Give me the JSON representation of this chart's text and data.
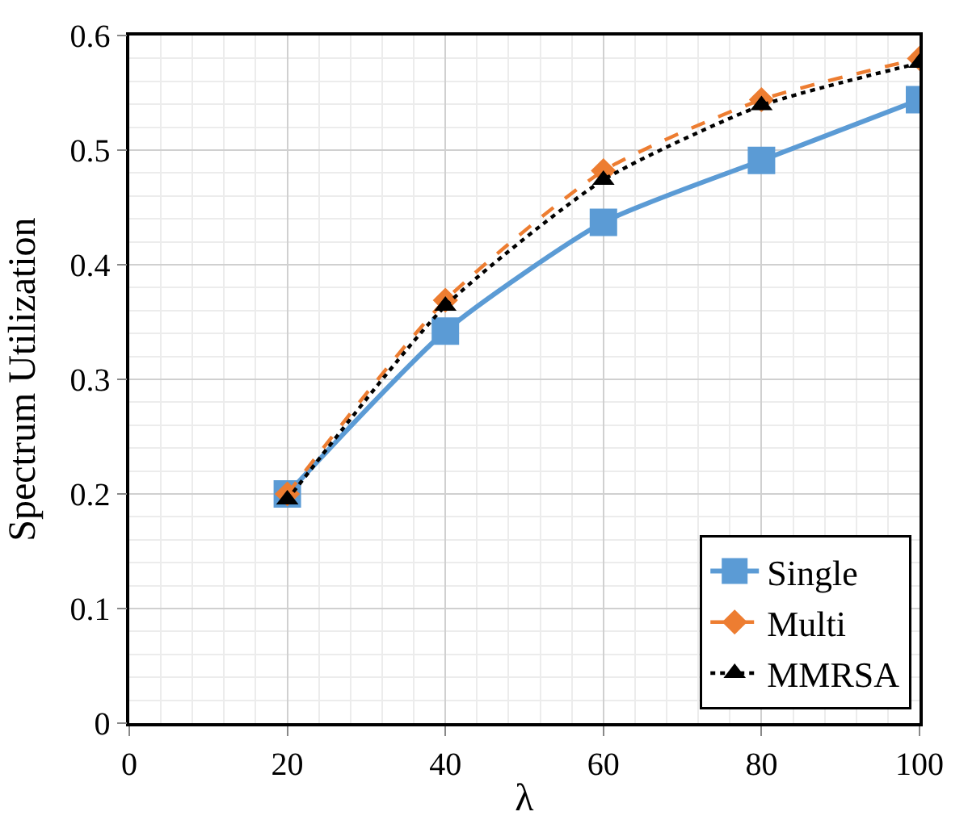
{
  "chart_data": {
    "type": "line",
    "xlabel": "λ",
    "ylabel": "Spectrum Utilization",
    "x": [
      20,
      40,
      60,
      80,
      100
    ],
    "series": [
      {
        "name": "Single",
        "color": "#5b9bd5",
        "marker": "square",
        "line_style": "solid",
        "values": [
          0.2,
          0.342,
          0.437,
          0.491,
          0.544
        ]
      },
      {
        "name": "Multi",
        "color": "#ed7d31",
        "marker": "diamond",
        "line_style": "dashed",
        "values": [
          0.2,
          0.369,
          0.482,
          0.544,
          0.58
        ]
      },
      {
        "name": "MMRSA",
        "color": "#000000",
        "marker": "triangle",
        "line_style": "dotted",
        "values": [
          0.195,
          0.364,
          0.474,
          0.539,
          0.576
        ]
      }
    ],
    "xlim": [
      0,
      100
    ],
    "xticks": [
      0,
      20,
      40,
      60,
      80,
      100
    ],
    "ylim": [
      0,
      0.6
    ],
    "yticks": [
      0,
      0.1,
      0.2,
      0.3,
      0.4,
      0.5,
      0.6
    ],
    "grid": true,
    "legend": "bottom right"
  }
}
